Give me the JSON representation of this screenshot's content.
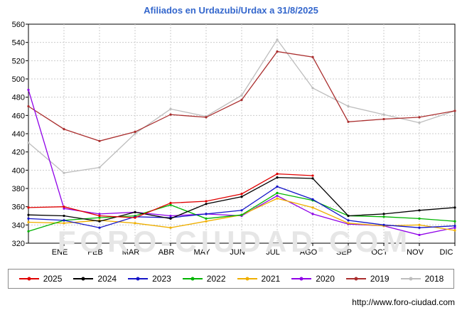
{
  "title": "Afiliados en Urdazubi/Urdax a 31/8/2025",
  "watermark": "FORO-CIUDAD.COM",
  "footer": {
    "url": "http://www.foro-ciudad.com"
  },
  "colors": {
    "title": "#3366cc",
    "grid": "#cccccc",
    "axis": "#000000",
    "watermark": "#e6e6e6"
  },
  "chart_data": {
    "type": "line",
    "title": "Afiliados en Urdazubi/Urdax a 31/8/2025",
    "x_labels": [
      "ENE",
      "FEB",
      "MAR",
      "ABR",
      "MAY",
      "JUN",
      "JUL",
      "AGO",
      "SEP",
      "OCT",
      "NOV",
      "DIC"
    ],
    "ylim": [
      320,
      560
    ],
    "y_tick_step": 20,
    "grid": true,
    "legend_position": "bottom",
    "series": [
      {
        "name": "2025",
        "color": "#e00000",
        "start_value": 359,
        "values": [
          360,
          350,
          348,
          364,
          366,
          374,
          396,
          394
        ]
      },
      {
        "name": "2024",
        "color": "#000000",
        "start_value": 351,
        "values": [
          350,
          344,
          354,
          347,
          363,
          371,
          392,
          391,
          350,
          352,
          356,
          359
        ]
      },
      {
        "name": "2023",
        "color": "#1515c8",
        "start_value": 347,
        "values": [
          345,
          337,
          349,
          348,
          352,
          356,
          382,
          368,
          345,
          340,
          337,
          339
        ]
      },
      {
        "name": "2022",
        "color": "#00b400",
        "start_value": 333,
        "values": [
          345,
          348,
          350,
          362,
          347,
          351,
          375,
          367,
          350,
          349,
          347,
          344
        ]
      },
      {
        "name": "2021",
        "color": "#efaf00",
        "start_value": 343,
        "values": [
          342,
          345,
          342,
          337,
          344,
          351,
          369,
          359,
          342,
          339,
          340,
          334
        ]
      },
      {
        "name": "2020",
        "color": "#8f00e8",
        "start_value": 488,
        "values": [
          358,
          352,
          354,
          350,
          352,
          350,
          372,
          352,
          341,
          339,
          329,
          337
        ]
      },
      {
        "name": "2019",
        "color": "#aa2e2e",
        "start_value": 470,
        "values": [
          445,
          432,
          442,
          461,
          458,
          477,
          530,
          524,
          453,
          456,
          458,
          465
        ]
      },
      {
        "name": "2018",
        "color": "#bdbdbd",
        "start_value": 430,
        "values": [
          397,
          403,
          440,
          467,
          459,
          482,
          543,
          490,
          470,
          461,
          452,
          465
        ]
      }
    ]
  }
}
